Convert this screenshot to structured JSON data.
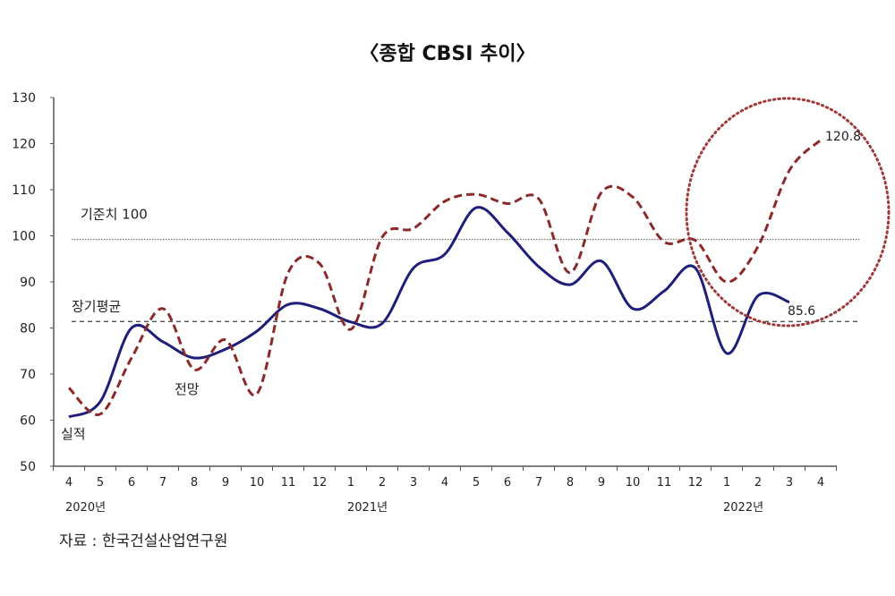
{
  "chart_data": {
    "type": "line",
    "title": "〈종합 CBSI 추이〉",
    "source": "자료 : 한국건설산업연구원",
    "ylim": [
      50,
      130
    ],
    "yticks": [
      50,
      60,
      70,
      80,
      90,
      100,
      110,
      120,
      130
    ],
    "x": [
      "4",
      "5",
      "6",
      "7",
      "8",
      "9",
      "10",
      "11",
      "12",
      "1",
      "2",
      "3",
      "4",
      "5",
      "6",
      "7",
      "8",
      "9",
      "10",
      "11",
      "12",
      "1",
      "2",
      "3",
      "4"
    ],
    "year_labels": [
      {
        "index": 0,
        "label": "2020년"
      },
      {
        "index": 9,
        "label": "2021년"
      },
      {
        "index": 21,
        "label": "2022년"
      }
    ],
    "series": [
      {
        "name": "실적",
        "color": "#1f1f7a",
        "style": "solid",
        "values": [
          60.7,
          64,
          80,
          77,
          73.5,
          75.4,
          79.3,
          85.1,
          84.2,
          81.3,
          81,
          93,
          96,
          106.1,
          100.7,
          93.3,
          89.4,
          94.5,
          84.2,
          88,
          93,
          74.5,
          87,
          85.6,
          null
        ]
      },
      {
        "name": "전망",
        "color": "#8b2a2a",
        "style": "dashed",
        "values": [
          67,
          61.3,
          73.5,
          84.2,
          71,
          77.4,
          65.7,
          92,
          94,
          79.7,
          99.7,
          101.6,
          107.5,
          109,
          107,
          108,
          92,
          109.4,
          108.4,
          98.7,
          99,
          90,
          97.7,
          114.2,
          120.8
        ]
      }
    ],
    "reference_lines": [
      {
        "name": "기준치 100",
        "value": 100,
        "style": "dotted"
      },
      {
        "name": "장기평균",
        "value": 81.4,
        "style": "dashed"
      }
    ],
    "annotations": [
      {
        "text": "120.8",
        "series": "전망",
        "index": 24
      },
      {
        "text": "85.6",
        "series": "실적",
        "index": 23
      }
    ],
    "highlight": "dotted circle around 2022 forecast",
    "grid": false,
    "legend": "inline labels"
  }
}
